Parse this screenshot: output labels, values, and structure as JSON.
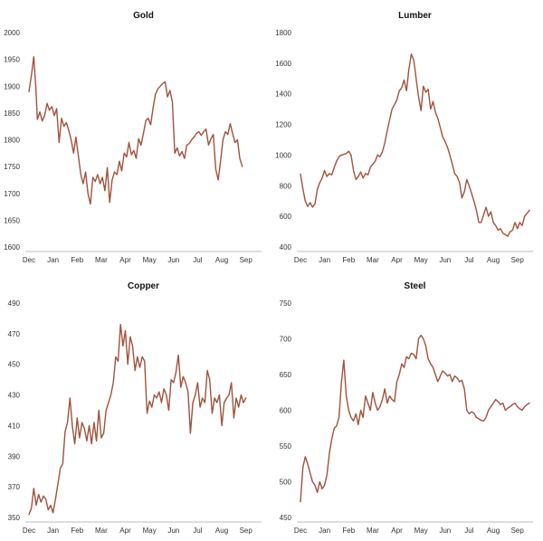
{
  "chart_data": [
    {
      "type": "line",
      "title": "Gold",
      "xlabel": "",
      "ylabel": "",
      "ylim": [
        1600,
        2000
      ],
      "yticks": [
        1600,
        1650,
        1700,
        1750,
        1800,
        1850,
        1900,
        1950,
        2000
      ],
      "xlim": [
        0,
        9.5
      ],
      "xtick_labels": [
        "Dec",
        "Jan",
        "Feb",
        "Mar",
        "Apr",
        "May",
        "Jun",
        "Jul",
        "Aug",
        "Sep"
      ],
      "color": "#a0523c",
      "grid": false,
      "x": [
        0,
        0.1,
        0.2,
        0.28,
        0.35,
        0.45,
        0.55,
        0.65,
        0.75,
        0.85,
        0.95,
        1.05,
        1.15,
        1.25,
        1.35,
        1.45,
        1.55,
        1.65,
        1.75,
        1.85,
        1.95,
        2.05,
        2.15,
        2.25,
        2.35,
        2.45,
        2.55,
        2.65,
        2.75,
        2.85,
        2.95,
        3.05,
        3.15,
        3.25,
        3.35,
        3.45,
        3.55,
        3.65,
        3.75,
        3.85,
        3.95,
        4.05,
        4.15,
        4.25,
        4.35,
        4.45,
        4.55,
        4.65,
        4.75,
        4.85,
        4.95,
        5.05,
        5.15,
        5.25,
        5.35,
        5.45,
        5.55,
        5.65,
        5.75,
        5.85,
        5.95,
        6.05,
        6.15,
        6.25,
        6.35,
        6.45,
        6.55,
        6.65,
        6.75,
        6.85,
        6.95,
        7.05,
        7.15,
        7.25,
        7.35,
        7.45,
        7.55,
        7.65,
        7.75,
        7.85,
        7.95,
        8.05,
        8.15,
        8.25,
        8.35,
        8.45,
        8.55,
        8.65,
        8.75,
        8.85
      ],
      "y": [
        1890,
        1920,
        1955,
        1900,
        1838,
        1852,
        1835,
        1845,
        1868,
        1855,
        1862,
        1845,
        1858,
        1795,
        1840,
        1825,
        1832,
        1818,
        1800,
        1775,
        1805,
        1770,
        1735,
        1718,
        1740,
        1700,
        1680,
        1730,
        1722,
        1735,
        1718,
        1730,
        1705,
        1748,
        1683,
        1725,
        1740,
        1735,
        1760,
        1742,
        1775,
        1768,
        1795,
        1772,
        1780,
        1765,
        1802,
        1790,
        1812,
        1836,
        1840,
        1828,
        1860,
        1885,
        1895,
        1900,
        1905,
        1908,
        1880,
        1892,
        1870,
        1775,
        1785,
        1770,
        1778,
        1765,
        1790,
        1793,
        1800,
        1805,
        1812,
        1815,
        1808,
        1815,
        1820,
        1790,
        1802,
        1810,
        1745,
        1725,
        1760,
        1800,
        1815,
        1810,
        1830,
        1812,
        1795,
        1800,
        1765,
        1750
      ]
    },
    {
      "type": "line",
      "title": "Lumber",
      "xlabel": "",
      "ylabel": "",
      "ylim": [
        400,
        1800
      ],
      "yticks": [
        400,
        600,
        800,
        1000,
        1200,
        1400,
        1600,
        1800
      ],
      "xlim": [
        0,
        9.5
      ],
      "xtick_labels": [
        "Dec",
        "Jan",
        "Feb",
        "Mar",
        "Apr",
        "May",
        "Jun",
        "Jul",
        "Aug",
        "Sep"
      ],
      "color": "#a0523c",
      "grid": false,
      "x": [
        0,
        0.1,
        0.2,
        0.3,
        0.4,
        0.5,
        0.6,
        0.7,
        0.8,
        0.9,
        1.0,
        1.1,
        1.2,
        1.3,
        1.4,
        1.5,
        1.6,
        1.7,
        1.8,
        1.9,
        2.0,
        2.1,
        2.2,
        2.3,
        2.4,
        2.5,
        2.6,
        2.7,
        2.8,
        2.9,
        3.0,
        3.1,
        3.2,
        3.3,
        3.4,
        3.5,
        3.6,
        3.7,
        3.8,
        3.9,
        4.0,
        4.1,
        4.2,
        4.3,
        4.4,
        4.5,
        4.6,
        4.7,
        4.8,
        4.9,
        5.0,
        5.1,
        5.2,
        5.3,
        5.4,
        5.5,
        5.6,
        5.7,
        5.8,
        5.9,
        6.0,
        6.1,
        6.2,
        6.3,
        6.4,
        6.5,
        6.6,
        6.7,
        6.8,
        6.9,
        7.0,
        7.1,
        7.2,
        7.3,
        7.4,
        7.5,
        7.6,
        7.7,
        7.8,
        7.9,
        8.0,
        8.1,
        8.2,
        8.3,
        8.4,
        8.5,
        8.6,
        8.7,
        8.8,
        8.9,
        9.0,
        9.1,
        9.2,
        9.3,
        9.4,
        9.5
      ],
      "y": [
        875,
        780,
        700,
        665,
        690,
        660,
        680,
        775,
        820,
        850,
        900,
        860,
        880,
        870,
        920,
        960,
        990,
        1000,
        1005,
        1010,
        1025,
        1000,
        900,
        840,
        860,
        890,
        850,
        880,
        870,
        920,
        940,
        960,
        1000,
        990,
        1020,
        1080,
        1160,
        1230,
        1300,
        1330,
        1360,
        1420,
        1440,
        1490,
        1420,
        1560,
        1660,
        1620,
        1500,
        1380,
        1290,
        1450,
        1410,
        1430,
        1300,
        1350,
        1280,
        1240,
        1180,
        1120,
        1090,
        1050,
        1000,
        940,
        880,
        860,
        820,
        720,
        760,
        840,
        800,
        750,
        700,
        640,
        560,
        560,
        610,
        660,
        600,
        630,
        560,
        540,
        510,
        520,
        490,
        480,
        470,
        500,
        510,
        560,
        520,
        560,
        540,
        600,
        620,
        640
      ]
    },
    {
      "type": "line",
      "title": "Copper",
      "xlabel": "",
      "ylabel": "",
      "ylim": [
        350,
        490
      ],
      "yticks": [
        350,
        370,
        390,
        410,
        430,
        450,
        470,
        490
      ],
      "xlim": [
        0,
        9.5
      ],
      "xtick_labels": [
        "Dec",
        "Jan",
        "Feb",
        "Mar",
        "Apr",
        "May",
        "Jun",
        "Jul",
        "Aug",
        "Sep"
      ],
      "color": "#a0523c",
      "grid": false,
      "x": [
        0,
        0.1,
        0.2,
        0.3,
        0.4,
        0.5,
        0.6,
        0.7,
        0.8,
        0.9,
        1.0,
        1.1,
        1.2,
        1.3,
        1.4,
        1.5,
        1.6,
        1.7,
        1.8,
        1.9,
        2.0,
        2.1,
        2.2,
        2.3,
        2.4,
        2.5,
        2.6,
        2.7,
        2.8,
        2.9,
        3.0,
        3.1,
        3.2,
        3.3,
        3.4,
        3.5,
        3.6,
        3.7,
        3.8,
        3.9,
        4.0,
        4.1,
        4.2,
        4.3,
        4.4,
        4.5,
        4.6,
        4.7,
        4.8,
        4.9,
        5.0,
        5.1,
        5.2,
        5.3,
        5.4,
        5.5,
        5.6,
        5.7,
        5.8,
        5.9,
        6.0,
        6.1,
        6.2,
        6.3,
        6.4,
        6.5,
        6.6,
        6.7,
        6.8,
        6.9,
        7.0,
        7.1,
        7.2,
        7.3,
        7.4,
        7.5,
        7.6,
        7.7,
        7.8,
        7.9,
        8.0,
        8.1,
        8.2,
        8.3,
        8.4,
        8.5,
        8.6,
        8.7,
        8.8,
        8.9,
        9.0
      ],
      "y": [
        352,
        356,
        369,
        358,
        365,
        360,
        364,
        362,
        355,
        358,
        353,
        362,
        372,
        382,
        385,
        406,
        412,
        428,
        410,
        398,
        415,
        402,
        412,
        408,
        400,
        410,
        398,
        412,
        400,
        420,
        402,
        405,
        420,
        425,
        430,
        438,
        455,
        452,
        476,
        462,
        472,
        450,
        468,
        462,
        446,
        455,
        448,
        455,
        452,
        418,
        426,
        422,
        430,
        428,
        432,
        425,
        434,
        430,
        420,
        440,
        438,
        445,
        456,
        435,
        442,
        438,
        432,
        405,
        425,
        430,
        438,
        422,
        428,
        425,
        446,
        440,
        418,
        428,
        425,
        430,
        410,
        425,
        428,
        430,
        438,
        415,
        428,
        422,
        430,
        425,
        428
      ]
    },
    {
      "type": "line",
      "title": "Steel",
      "xlabel": "",
      "ylabel": "",
      "ylim": [
        450,
        750
      ],
      "yticks": [
        450,
        500,
        550,
        600,
        650,
        700,
        750
      ],
      "xlim": [
        0,
        9.5
      ],
      "xtick_labels": [
        "Dec",
        "Jan",
        "Feb",
        "Mar",
        "Apr",
        "May",
        "Jun",
        "Jul",
        "Aug",
        "Sep"
      ],
      "color": "#a0523c",
      "grid": false,
      "x": [
        0,
        0.1,
        0.2,
        0.3,
        0.4,
        0.5,
        0.6,
        0.7,
        0.8,
        0.9,
        1.0,
        1.1,
        1.2,
        1.3,
        1.4,
        1.5,
        1.6,
        1.7,
        1.8,
        1.9,
        2.0,
        2.1,
        2.2,
        2.3,
        2.4,
        2.5,
        2.6,
        2.7,
        2.8,
        2.9,
        3.0,
        3.1,
        3.2,
        3.3,
        3.4,
        3.5,
        3.6,
        3.7,
        3.8,
        3.9,
        4.0,
        4.1,
        4.2,
        4.3,
        4.4,
        4.5,
        4.6,
        4.7,
        4.8,
        4.9,
        5.0,
        5.1,
        5.2,
        5.3,
        5.4,
        5.5,
        5.6,
        5.7,
        5.8,
        5.9,
        6.0,
        6.1,
        6.2,
        6.3,
        6.4,
        6.5,
        6.6,
        6.7,
        6.8,
        6.9,
        7.0,
        7.1,
        7.2,
        7.3,
        7.4,
        7.5,
        7.6,
        7.7,
        7.8,
        7.9,
        8.0,
        8.1,
        8.2,
        8.3,
        8.4,
        8.5,
        8.6,
        8.7,
        8.8,
        8.9,
        9.0,
        9.1,
        9.2,
        9.3,
        9.4,
        9.5
      ],
      "y": [
        472,
        520,
        535,
        525,
        512,
        500,
        495,
        485,
        500,
        490,
        495,
        510,
        540,
        560,
        575,
        578,
        590,
        640,
        670,
        620,
        600,
        590,
        585,
        595,
        580,
        600,
        590,
        620,
        610,
        600,
        625,
        610,
        600,
        605,
        615,
        630,
        610,
        620,
        615,
        612,
        640,
        650,
        665,
        660,
        675,
        672,
        680,
        678,
        672,
        700,
        705,
        700,
        690,
        672,
        665,
        660,
        650,
        640,
        648,
        655,
        652,
        648,
        650,
        640,
        648,
        645,
        640,
        642,
        630,
        600,
        595,
        598,
        596,
        590,
        588,
        586,
        585,
        590,
        600,
        605,
        610,
        615,
        612,
        608,
        610,
        600,
        603,
        605,
        608,
        610,
        605,
        602,
        600,
        605,
        608,
        610
      ]
    }
  ]
}
